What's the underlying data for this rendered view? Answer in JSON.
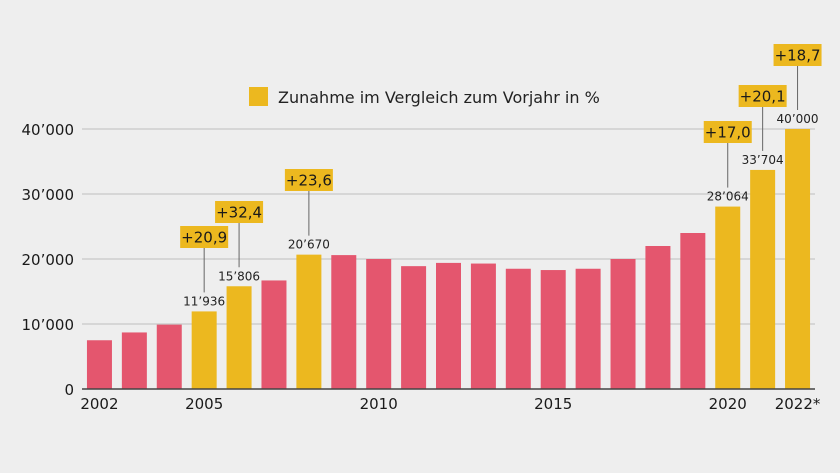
{
  "chart_data": {
    "type": "bar",
    "categories": [
      "2002",
      "2003",
      "2004",
      "2005",
      "2006",
      "2007",
      "2008",
      "2009",
      "2010",
      "2011",
      "2012",
      "2013",
      "2014",
      "2015",
      "2016",
      "2017",
      "2018",
      "2019",
      "2020",
      "2021",
      "2022"
    ],
    "values": [
      7500,
      8700,
      9900,
      11936,
      15806,
      16700,
      20670,
      20600,
      20000,
      18900,
      19400,
      19300,
      18500,
      18300,
      18500,
      20000,
      22000,
      24000,
      28064,
      33704,
      40000
    ],
    "highlight": [
      false,
      false,
      false,
      true,
      true,
      false,
      true,
      false,
      false,
      false,
      false,
      false,
      false,
      false,
      false,
      false,
      false,
      false,
      true,
      true,
      true
    ],
    "value_labels": {
      "2005": "11’936",
      "2006": "15’806",
      "2008": "20’670",
      "2020": "28’064",
      "2021": "33’704",
      "2022": "40’000"
    },
    "change_labels": {
      "2005": "+20,9",
      "2006": "+32,4",
      "2008": "+23,6",
      "2020": "+17,0",
      "2021": "+20,1",
      "2022": "+18,7"
    },
    "x_tick_labels": {
      "2002": "2002",
      "2005": "2005",
      "2010": "2010",
      "2015": "2015",
      "2020": "2020",
      "2022": "2022*"
    },
    "y_ticks": [
      0,
      10000,
      20000,
      30000,
      40000
    ],
    "y_tick_labels": [
      "0",
      "10’000",
      "20’000",
      "30’000",
      "40’000"
    ],
    "ylim": [
      0,
      40000
    ],
    "legend": {
      "label": "Zunahme im Vergleich zum Vorjahr in %",
      "placement": "top"
    },
    "grid": true,
    "title": "",
    "xlabel": "",
    "ylabel": ""
  },
  "colors": {
    "bar": "#e4566e",
    "highlight": "#ecb81f",
    "background": "#eeeeee",
    "grid": "#bdbdbd",
    "axis": "#444444",
    "leader": "#666666"
  }
}
